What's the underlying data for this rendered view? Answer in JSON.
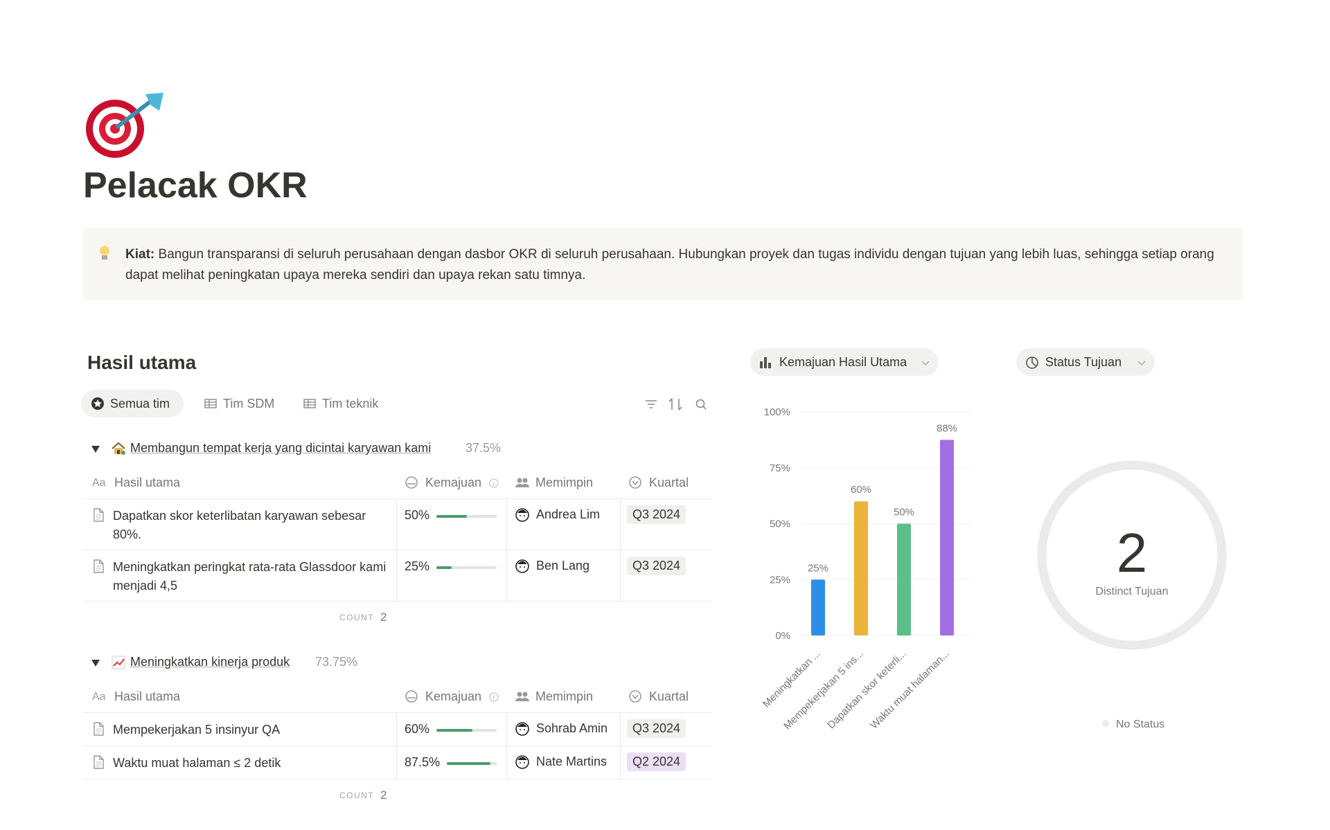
{
  "page": {
    "title": "Pelacak OKR",
    "callout": {
      "label": "Kiat:",
      "text": "Bangun transparansi di seluruh perusahaan dengan dasbor OKR di seluruh perusahaan. Hubungkan proyek dan tugas individu dengan tujuan yang lebih luas, sehingga setiap orang dapat melihat peningkatan upaya mereka sendiri dan upaya rekan satu timnya."
    }
  },
  "section": {
    "title": "Hasil utama",
    "tabs": [
      "Semua tim",
      "Tim SDM",
      "Tim teknik"
    ],
    "columns": [
      "Hasil utama",
      "Kemajuan",
      "Memimpin",
      "Kuartal"
    ],
    "count_label": "COUNT",
    "groups": [
      {
        "name": "Membangun tempat kerja yang dicintai karyawan kami",
        "progress_label": "37.5%",
        "count": 2,
        "rows": [
          {
            "title": "Dapatkan skor keterlibatan karyawan sebesar 80%.",
            "progress": 50,
            "progress_label": "50%",
            "lead": "Andrea Lim",
            "quarter": "Q3 2024",
            "quarter_color": "#efefed"
          },
          {
            "title": "Meningkatkan peringkat rata-rata Glassdoor kami menjadi 4,5",
            "progress": 25,
            "progress_label": "25%",
            "lead": "Ben Lang",
            "quarter": "Q3 2024",
            "quarter_color": "#efefed"
          }
        ]
      },
      {
        "name": "Meningkatkan kinerja produk",
        "progress_label": "73.75%",
        "count": 2,
        "rows": [
          {
            "title": "Mempekerjakan 5 insinyur QA",
            "progress": 60,
            "progress_label": "60%",
            "lead": "Sohrab Amin",
            "quarter": "Q3 2024",
            "quarter_color": "#efefed"
          },
          {
            "title": "Waktu muat halaman ≤ 2 detik",
            "progress": 87.5,
            "progress_label": "87.5%",
            "lead": "Nate Martins",
            "quarter": "Q2 2024",
            "quarter_color": "#eadff3"
          }
        ]
      }
    ]
  },
  "chart_data": [
    {
      "type": "bar",
      "title": "Kemajuan Hasil Utama",
      "categories": [
        "Meningkatkan ...",
        "Mempekerjakan 5 ins...",
        "Dapatkan skor keterli...",
        "Waktu muat halaman..."
      ],
      "values": [
        25,
        60,
        50,
        87.5
      ],
      "value_labels": [
        "25%",
        "60%",
        "50%",
        "88%"
      ],
      "colors": [
        "#2d8ee6",
        "#e8b53a",
        "#5cbf8a",
        "#a26fe0"
      ],
      "ylim": [
        0,
        100
      ],
      "yticks": [
        {
          "value": 0,
          "label": "0%"
        },
        {
          "value": 25,
          "label": "25%"
        },
        {
          "value": 50,
          "label": "50%"
        },
        {
          "value": 75,
          "label": "75%"
        },
        {
          "value": 100,
          "label": "100%"
        }
      ],
      "grid": true
    },
    {
      "type": "donut",
      "title": "Status Tujuan",
      "categories": [
        "No Status"
      ],
      "values": [
        2
      ],
      "center_label": "Distinct Tujuan",
      "color": "#ebebea"
    }
  ]
}
